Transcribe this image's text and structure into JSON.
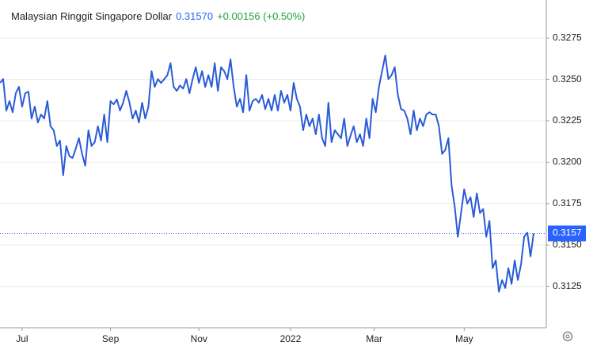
{
  "chart_data": {
    "type": "line",
    "title": "Malaysian Ringgit Singapore Dollar",
    "price": "0.31570",
    "change": "+0.00156 (+0.50%)",
    "price_color": "#2962ff",
    "change_color": "#1fa33a",
    "last_value": 0.3157,
    "ylim": [
      0.31,
      0.3298
    ],
    "yticks": [
      {
        "value": 0.3125,
        "label": "0.3125"
      },
      {
        "value": 0.315,
        "label": "0.3150"
      },
      0.3175,
      {
        "value": 0.32,
        "label": "0.3200"
      },
      0.3225,
      {
        "value": 0.325,
        "label": "0.3250"
      },
      0.3275
    ],
    "xlim": [
      0,
      173
    ],
    "xticks": [
      {
        "value": 7,
        "label": "Jul"
      },
      {
        "value": 35,
        "label": "Sep"
      },
      {
        "value": 63,
        "label": "Nov"
      },
      {
        "value": 92,
        "label": "2022"
      },
      {
        "value": 118.5,
        "label": "Mar"
      },
      {
        "value": 147,
        "label": "May"
      }
    ],
    "grid": true,
    "series": [
      {
        "color": "#2a5bd7",
        "values": [
          0.32479,
          0.32502,
          0.32312,
          0.32369,
          0.32302,
          0.32417,
          0.32455,
          0.32336,
          0.32417,
          0.32426,
          0.32264,
          0.32336,
          0.3224,
          0.32288,
          0.32264,
          0.32369,
          0.32217,
          0.32193,
          0.32098,
          0.32131,
          0.31921,
          0.32098,
          0.32036,
          0.32026,
          0.32083,
          0.32145,
          0.3205,
          0.31979,
          0.32193,
          0.32098,
          0.32121,
          0.32217,
          0.32131,
          0.32288,
          0.32121,
          0.32369,
          0.3235,
          0.32379,
          0.32312,
          0.3236,
          0.32431,
          0.3236,
          0.32264,
          0.32312,
          0.3224,
          0.3236,
          0.32264,
          0.32336,
          0.3255,
          0.32455,
          0.32502,
          0.32479,
          0.32502,
          0.32526,
          0.32598,
          0.32455,
          0.32431,
          0.32464,
          0.32445,
          0.32502,
          0.32417,
          0.32502,
          0.32574,
          0.32479,
          0.3255,
          0.32455,
          0.32526,
          0.32455,
          0.32598,
          0.32431,
          0.32574,
          0.3255,
          0.32502,
          0.32621,
          0.32455,
          0.32336,
          0.32383,
          0.32302,
          0.32526,
          0.32312,
          0.32369,
          0.32383,
          0.3236,
          0.32407,
          0.32321,
          0.32383,
          0.32312,
          0.32407,
          0.32312,
          0.32431,
          0.3236,
          0.32407,
          0.32312,
          0.32479,
          0.32383,
          0.32336,
          0.32193,
          0.32288,
          0.32217,
          0.32264,
          0.32169,
          0.32288,
          0.32145,
          0.32098,
          0.3236,
          0.32121,
          0.32193,
          0.32169,
          0.32145,
          0.32264,
          0.32098,
          0.3216,
          0.32217,
          0.32121,
          0.32169,
          0.32098,
          0.32264,
          0.32145,
          0.32383,
          0.32302,
          0.32455,
          0.3255,
          0.32645,
          0.32502,
          0.32526,
          0.32574,
          0.32407,
          0.32321,
          0.32312,
          0.32264,
          0.32169,
          0.32312,
          0.32193,
          0.32264,
          0.32217,
          0.32288,
          0.32302,
          0.32288,
          0.32288,
          0.32217,
          0.3205,
          0.32074,
          0.32145,
          0.3186,
          0.31731,
          0.3155,
          0.31693,
          0.31836,
          0.3175,
          0.31788,
          0.31669,
          0.31812,
          0.31693,
          0.31717,
          0.3155,
          0.31645,
          0.3136,
          0.31407,
          0.31217,
          0.31288,
          0.3124,
          0.3136,
          0.31264,
          0.31407,
          0.31288,
          0.31383,
          0.3155,
          0.31574,
          0.31431,
          0.3157
        ]
      }
    ]
  }
}
